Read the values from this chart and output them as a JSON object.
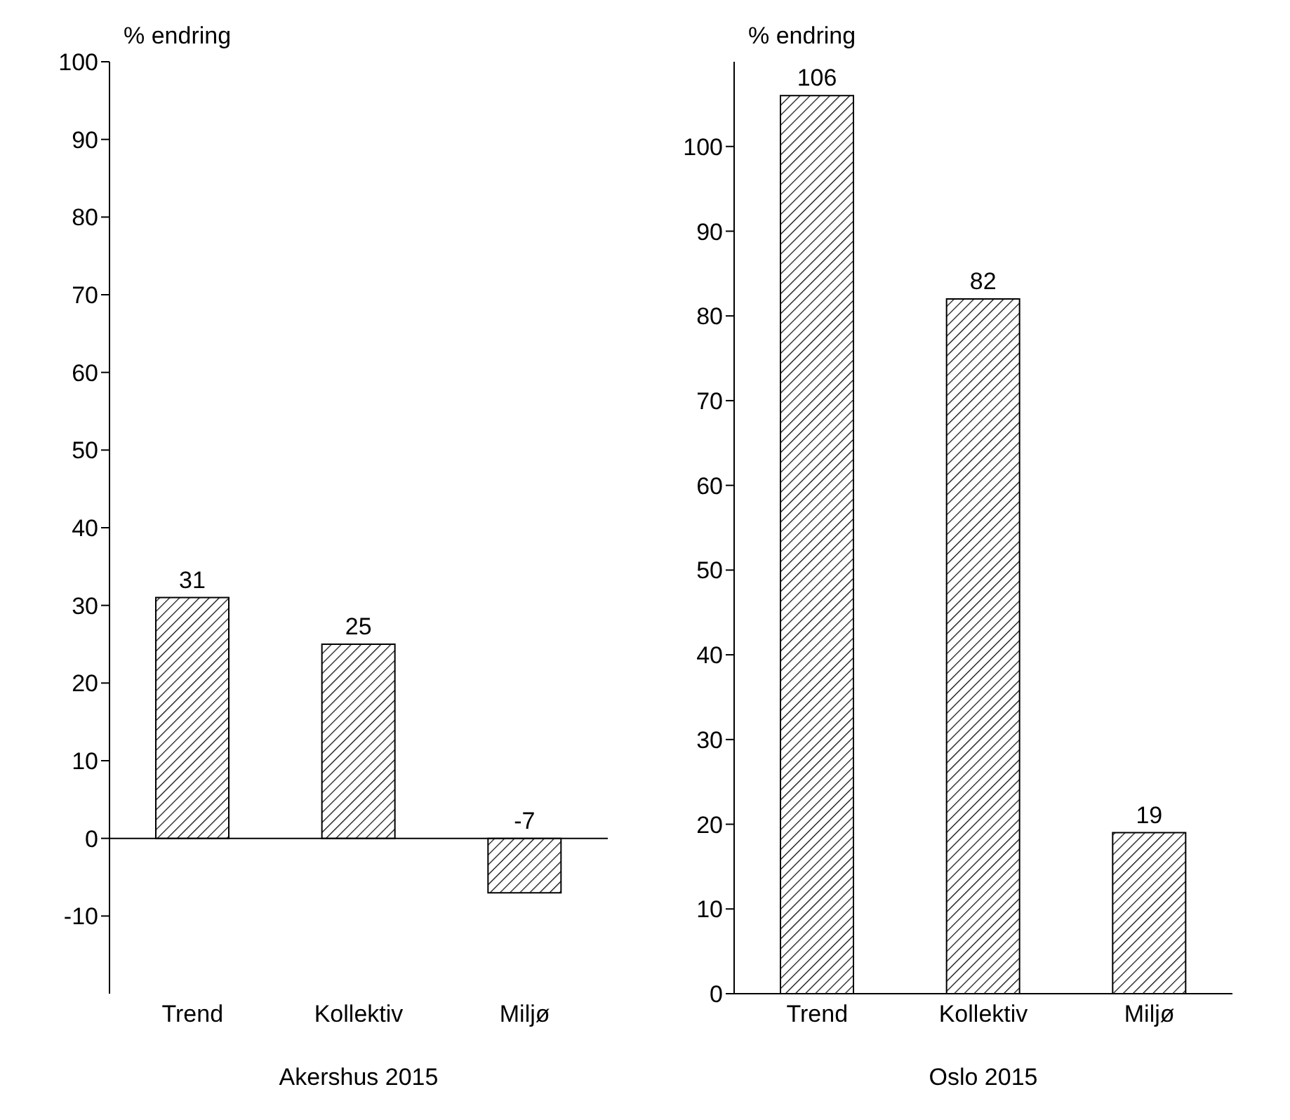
{
  "chart_data": [
    {
      "type": "bar",
      "xlabel": "Akershus 2015",
      "ylabel": "% endring",
      "categories": [
        "Trend",
        "Kollektiv",
        "Miljø"
      ],
      "values": [
        31,
        25,
        -7
      ],
      "color": "#000000",
      "ylim": [
        -20,
        100
      ],
      "yticks": [
        -10,
        0,
        10,
        20,
        30,
        40,
        50,
        60,
        70,
        80,
        90,
        100
      ],
      "data_labels": true
    },
    {
      "type": "bar",
      "xlabel": "Oslo 2015",
      "ylabel": "% endring",
      "categories": [
        "Trend",
        "Kollektiv",
        "Miljø"
      ],
      "values": [
        106,
        82,
        19
      ],
      "color": "#000000",
      "ylim": [
        0,
        110
      ],
      "yticks": [
        0,
        10,
        20,
        30,
        40,
        50,
        60,
        70,
        80,
        90,
        100
      ],
      "data_labels": true
    }
  ]
}
